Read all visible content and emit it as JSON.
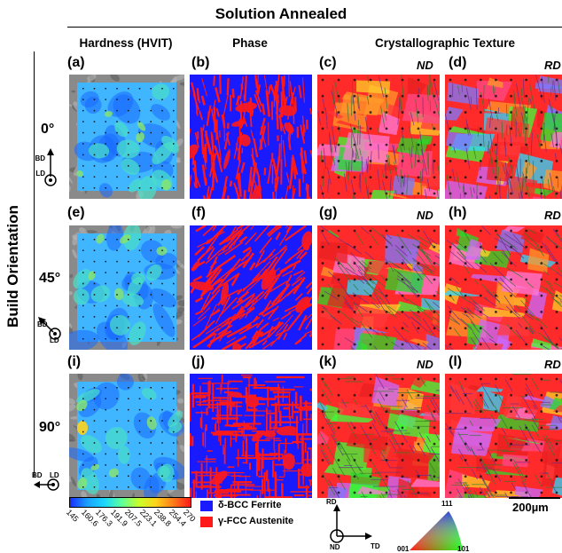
{
  "figure": {
    "title": "Solution Annealed",
    "columns": {
      "hardness": "Hardness (HVIT)",
      "phase": "Phase",
      "texture": "Crystallographic Texture"
    },
    "row_group_label": "Build Orientation",
    "rows": [
      {
        "angle": "0°",
        "labels": [
          "(a)",
          "(b)",
          "(c)",
          "(d)"
        ],
        "texture_dirs": [
          "ND",
          "RD"
        ],
        "orient": {
          "a": "BD",
          "b": "LD"
        }
      },
      {
        "angle": "45°",
        "labels": [
          "(e)",
          "(f)",
          "(g)",
          "(h)"
        ],
        "texture_dirs": [
          "ND",
          "RD"
        ],
        "orient": {
          "a": "BD",
          "b": "LD"
        }
      },
      {
        "angle": "90°",
        "labels": [
          "(i)",
          "(j)",
          "(k)",
          "(l)"
        ],
        "texture_dirs": [
          "ND",
          "RD"
        ],
        "orient": {
          "a": "BD",
          "b": "LD"
        }
      }
    ],
    "hardness_colorbar": {
      "ticks": [
        "145",
        "160.6",
        "176.3",
        "191.9",
        "207.5",
        "223.1",
        "238.8",
        "254.4",
        "270"
      ]
    },
    "phase_legend": [
      {
        "label": "δ-BCC Ferrite",
        "color": "#1a1aff"
      },
      {
        "label": "γ-FCC Austenite",
        "color": "#ff1a1a"
      }
    ],
    "texture_axes": {
      "rd": "RD",
      "nd": "ND",
      "td": "TD"
    },
    "ipf_triangle": {
      "top": "111",
      "left": "001",
      "right": "101"
    },
    "scale_bar": "200µm",
    "colors": {
      "ferrite": "#1a1aff",
      "austenite": "#ff1a1a"
    }
  }
}
